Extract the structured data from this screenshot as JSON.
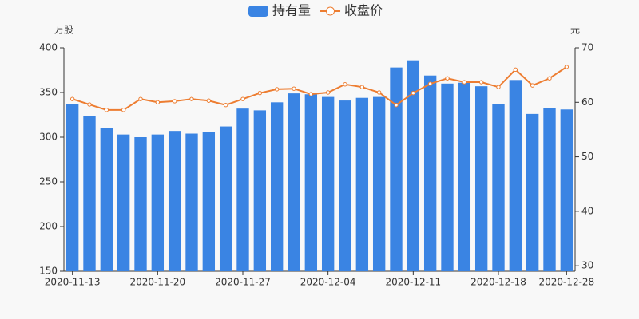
{
  "chart_data": {
    "type": "bar-line",
    "y_axis_label": "万股",
    "y2_axis_label": "元",
    "categories": [
      "2020-11-13",
      null,
      null,
      null,
      null,
      "2020-11-20",
      null,
      null,
      null,
      null,
      "2020-11-27",
      null,
      null,
      null,
      null,
      "2020-12-04",
      null,
      null,
      null,
      null,
      "2020-12-11",
      null,
      null,
      null,
      null,
      "2020-12-18",
      null,
      null,
      null,
      "2020-12-28"
    ],
    "series": [
      {
        "name": "持有量",
        "type": "bar",
        "color": "#3a84e3",
        "values": [
          337,
          324,
          310,
          303,
          300,
          303,
          307,
          304,
          306,
          312,
          332,
          330,
          339,
          349,
          348,
          345,
          341,
          344,
          345,
          378,
          386,
          369,
          360,
          361,
          357,
          337,
          364,
          326,
          333,
          331
        ]
      },
      {
        "name": "收盘价",
        "type": "line",
        "axis": "y2",
        "color": "#ed7d31",
        "values": [
          60.6,
          59.6,
          58.6,
          58.6,
          60.6,
          60.0,
          60.2,
          60.6,
          60.3,
          59.5,
          60.6,
          61.7,
          62.4,
          62.5,
          61.5,
          61.8,
          63.3,
          62.8,
          61.8,
          59.5,
          61.7,
          63.4,
          64.4,
          63.7,
          63.7,
          62.8,
          66.0,
          63.1,
          64.4,
          66.5
        ]
      }
    ],
    "ylim": [
      150,
      400
    ],
    "yticks": [
      150,
      200,
      250,
      300,
      350,
      400
    ],
    "y2lim": [
      29,
      70
    ],
    "y2ticks": [
      30,
      40,
      50,
      60,
      70
    ]
  }
}
